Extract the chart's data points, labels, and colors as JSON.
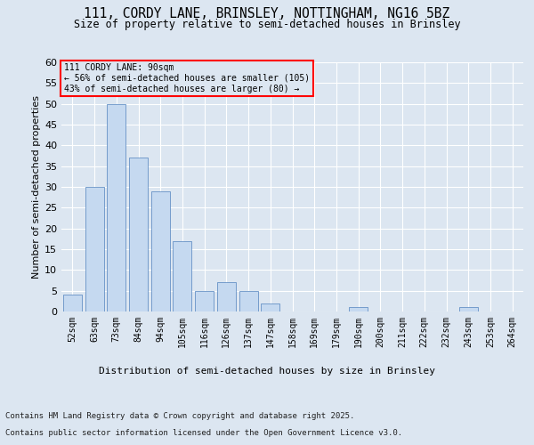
{
  "title1": "111, CORDY LANE, BRINSLEY, NOTTINGHAM, NG16 5BZ",
  "title2": "Size of property relative to semi-detached houses in Brinsley",
  "xlabel": "Distribution of semi-detached houses by size in Brinsley",
  "ylabel": "Number of semi-detached properties",
  "categories": [
    "52sqm",
    "63sqm",
    "73sqm",
    "84sqm",
    "94sqm",
    "105sqm",
    "116sqm",
    "126sqm",
    "137sqm",
    "147sqm",
    "158sqm",
    "169sqm",
    "179sqm",
    "190sqm",
    "200sqm",
    "211sqm",
    "222sqm",
    "232sqm",
    "243sqm",
    "253sqm",
    "264sqm"
  ],
  "values": [
    4,
    30,
    50,
    37,
    29,
    17,
    5,
    7,
    5,
    2,
    0,
    0,
    0,
    1,
    0,
    0,
    0,
    0,
    1,
    0,
    0
  ],
  "bar_color": "#c5d9f0",
  "bar_edge_color": "#4f81bd",
  "background_color": "#dce6f1",
  "annotation_box_text": [
    "111 CORDY LANE: 90sqm",
    "← 56% of semi-detached houses are smaller (105)",
    "43% of semi-detached houses are larger (80) →"
  ],
  "annotation_box_color": "#ff0000",
  "ylim": [
    0,
    60
  ],
  "yticks": [
    0,
    5,
    10,
    15,
    20,
    25,
    30,
    35,
    40,
    45,
    50,
    55,
    60
  ],
  "footer_line1": "Contains HM Land Registry data © Crown copyright and database right 2025.",
  "footer_line2": "Contains public sector information licensed under the Open Government Licence v3.0.",
  "grid_color": "#ffffff"
}
